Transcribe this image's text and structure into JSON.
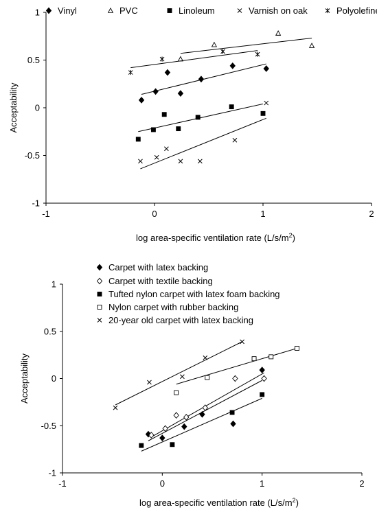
{
  "chart_data": [
    {
      "type": "scatter",
      "title": "",
      "xlabel": "log area-specific ventilation rate (L/s/m",
      "xlabel_sup": "2",
      "xlabel_end": ")",
      "ylabel": "Acceptability",
      "xlim": [
        -1,
        2
      ],
      "ylim": [
        -1,
        1
      ],
      "x_ticks": [
        "-1",
        "0",
        "1",
        "2"
      ],
      "y_ticks": [
        "1",
        "0.5",
        "0",
        "-0.5",
        "-1"
      ],
      "grid": false,
      "legend": "top, horizontal",
      "series": [
        {
          "name": "Vinyl",
          "marker": "filled-diamond",
          "points": [
            [
              -0.12,
              0.08
            ],
            [
              0.01,
              0.17
            ],
            [
              0.12,
              0.37
            ],
            [
              0.24,
              0.15
            ],
            [
              0.43,
              0.3
            ],
            [
              0.72,
              0.44
            ],
            [
              1.03,
              0.41
            ]
          ],
          "trend": [
            [
              -0.12,
              0.14
            ],
            [
              1.03,
              0.46
            ]
          ]
        },
        {
          "name": "PVC",
          "marker": "open-triangle",
          "points": [
            [
              0.24,
              0.51
            ],
            [
              0.55,
              0.66
            ],
            [
              1.14,
              0.78
            ],
            [
              1.45,
              0.65
            ]
          ],
          "trend": [
            [
              0.24,
              0.57
            ],
            [
              1.45,
              0.73
            ]
          ]
        },
        {
          "name": "Linoleum",
          "marker": "filled-square",
          "points": [
            [
              -0.15,
              -0.33
            ],
            [
              -0.01,
              -0.23
            ],
            [
              0.09,
              -0.07
            ],
            [
              0.22,
              -0.22
            ],
            [
              0.4,
              -0.1
            ],
            [
              0.71,
              0.01
            ],
            [
              1.0,
              -0.06
            ]
          ],
          "trend": [
            [
              -0.15,
              -0.25
            ],
            [
              1.0,
              0.04
            ]
          ]
        },
        {
          "name": "Varnish on oak",
          "marker": "x",
          "points": [
            [
              -0.13,
              -0.56
            ],
            [
              0.02,
              -0.52
            ],
            [
              0.11,
              -0.43
            ],
            [
              0.24,
              -0.56
            ],
            [
              0.42,
              -0.56
            ],
            [
              0.74,
              -0.34
            ],
            [
              1.03,
              0.05
            ]
          ],
          "trend": [
            [
              -0.13,
              -0.64
            ],
            [
              1.03,
              -0.11
            ]
          ]
        },
        {
          "name": "Polyolefine",
          "marker": "asterisk",
          "points": [
            [
              -0.22,
              0.37
            ],
            [
              0.07,
              0.51
            ],
            [
              0.63,
              0.59
            ],
            [
              0.95,
              0.56
            ]
          ],
          "trend": [
            [
              -0.22,
              0.42
            ],
            [
              0.95,
              0.6
            ]
          ]
        }
      ]
    },
    {
      "type": "scatter",
      "title": "",
      "xlabel": "log area-specific ventilation rate (L/s/m",
      "xlabel_sup": "2",
      "xlabel_end": ")",
      "ylabel": "Acceptability",
      "xlim": [
        -1,
        2
      ],
      "ylim": [
        -1,
        1
      ],
      "x_ticks": [
        "-1",
        "0",
        "1",
        "2"
      ],
      "y_ticks": [
        "1",
        "0.5",
        "0",
        "-0.5",
        "-1"
      ],
      "grid": false,
      "legend": "top-left, vertical",
      "series": [
        {
          "name": "Carpet with latex backing",
          "marker": "filled-diamond",
          "points": [
            [
              -0.14,
              -0.59
            ],
            [
              0.0,
              -0.63
            ],
            [
              0.22,
              -0.51
            ],
            [
              0.4,
              -0.38
            ],
            [
              0.71,
              -0.48
            ],
            [
              1.0,
              0.09
            ]
          ],
          "trend": [
            [
              -0.14,
              -0.66
            ],
            [
              1.0,
              -0.02
            ]
          ]
        },
        {
          "name": "Carpet with textile backing",
          "marker": "open-diamond",
          "points": [
            [
              -0.11,
              -0.6
            ],
            [
              0.03,
              -0.53
            ],
            [
              0.14,
              -0.39
            ],
            [
              0.24,
              -0.41
            ],
            [
              0.43,
              -0.31
            ],
            [
              0.73,
              0.0
            ],
            [
              1.02,
              0.0
            ]
          ],
          "trend": [
            [
              -0.11,
              -0.62
            ],
            [
              1.02,
              0.06
            ]
          ]
        },
        {
          "name": "Tufted nylon carpet with latex foam backing",
          "marker": "filled-square",
          "points": [
            [
              -0.21,
              -0.71
            ],
            [
              0.1,
              -0.7
            ],
            [
              0.7,
              -0.36
            ],
            [
              1.0,
              -0.17
            ]
          ],
          "trend": [
            [
              -0.21,
              -0.77
            ],
            [
              1.0,
              -0.21
            ]
          ]
        },
        {
          "name": "Nylon carpet with rubber backing",
          "marker": "open-square",
          "points": [
            [
              0.14,
              -0.15
            ],
            [
              0.45,
              0.01
            ],
            [
              0.92,
              0.21
            ],
            [
              1.09,
              0.23
            ],
            [
              1.35,
              0.32
            ]
          ],
          "trend": [
            [
              0.14,
              -0.06
            ],
            [
              1.35,
              0.32
            ]
          ]
        },
        {
          "name": "20-year old carpet with latex backing",
          "marker": "x",
          "points": [
            [
              -0.47,
              -0.31
            ],
            [
              -0.13,
              -0.04
            ],
            [
              0.2,
              0.02
            ],
            [
              0.43,
              0.22
            ],
            [
              0.8,
              0.39
            ]
          ],
          "trend": [
            [
              -0.47,
              -0.28
            ],
            [
              0.8,
              0.39
            ]
          ]
        }
      ]
    }
  ]
}
